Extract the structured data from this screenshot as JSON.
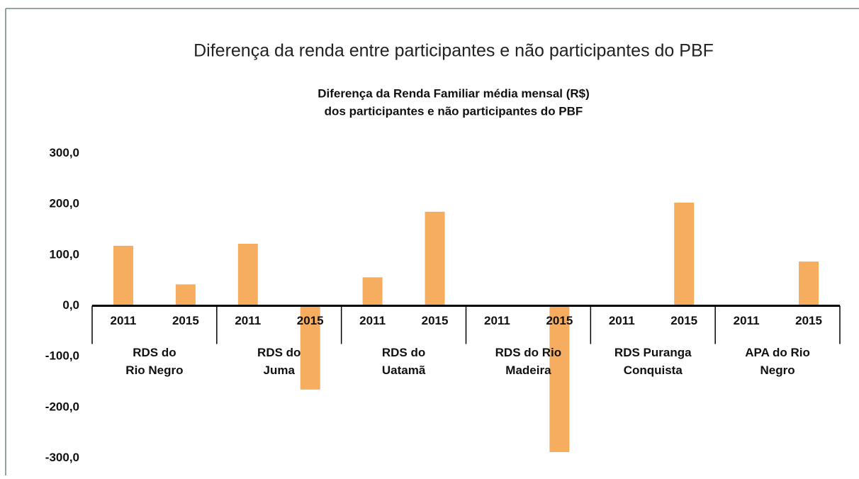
{
  "chart_data": {
    "type": "bar",
    "title": "Diferença da renda entre participantes e não participantes do PBF",
    "subtitle": [
      "Diferença da Renda Familiar média mensal (R$)",
      "dos participantes e não participantes do PBF"
    ],
    "color": "#f6ad5f",
    "ylim": [
      -300,
      300
    ],
    "yticks": [
      {
        "value": 300,
        "label": "300,0"
      },
      {
        "value": 200,
        "label": "200,0"
      },
      {
        "value": 100,
        "label": "100,0"
      },
      {
        "value": 0,
        "label": "0,0"
      },
      {
        "value": -100,
        "label": "-100,0"
      },
      {
        "value": -200,
        "label": "-200,0"
      },
      {
        "value": -300,
        "label": "-300,0"
      }
    ],
    "groups": [
      {
        "label": [
          "RDS do",
          "Rio Negro"
        ],
        "categories": [
          "2011",
          "2015"
        ],
        "values": [
          118,
          42
        ]
      },
      {
        "label": [
          "RDS do",
          "Juma"
        ],
        "categories": [
          "2011",
          "2015"
        ],
        "values": [
          122,
          -165
        ]
      },
      {
        "label": [
          "RDS do",
          "Uatamã"
        ],
        "categories": [
          "2011",
          "2015"
        ],
        "values": [
          56,
          185
        ]
      },
      {
        "label": [
          "RDS do Rio",
          "Madeira"
        ],
        "categories": [
          "2011",
          "2015"
        ],
        "values": [
          null,
          -288
        ]
      },
      {
        "label": [
          "RDS Puranga",
          "Conquista"
        ],
        "categories": [
          "2011",
          "2015"
        ],
        "values": [
          null,
          203
        ]
      },
      {
        "label": [
          "APA do Rio",
          "Negro"
        ],
        "categories": [
          "2011",
          "2015"
        ],
        "values": [
          null,
          87
        ]
      }
    ]
  }
}
